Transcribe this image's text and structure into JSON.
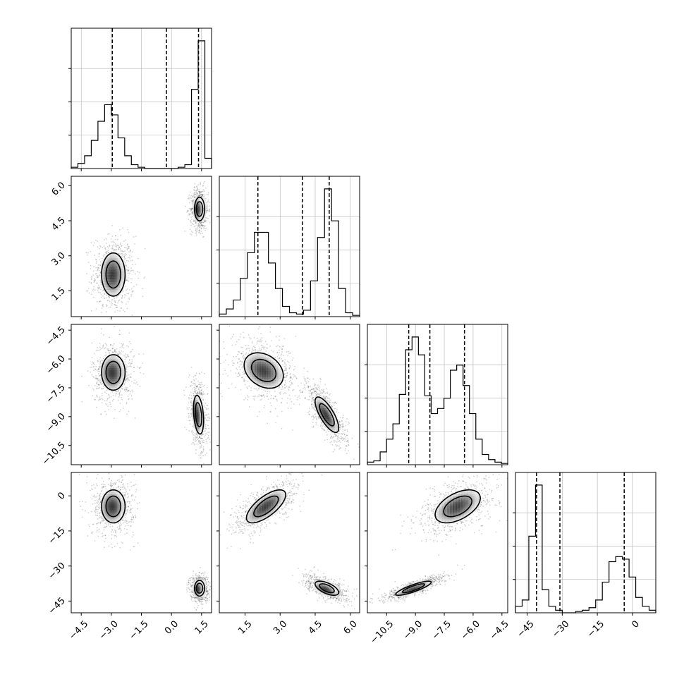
{
  "chart_data": {
    "type": "corner",
    "title": "",
    "parameters": [
      {
        "id": "p0",
        "range": [
          -5,
          2
        ],
        "ticks": [
          -4.5,
          -3.0,
          -1.5,
          0.0,
          1.5
        ],
        "tick_labels": [
          "−4.5",
          "−3.0",
          "−1.5",
          "0.0",
          "1.5"
        ],
        "quantiles": [
          -2.95,
          -0.25,
          1.35
        ]
      },
      {
        "id": "p1",
        "range": [
          0.4,
          6.4
        ],
        "ticks": [
          1.5,
          3.0,
          4.5,
          6.0
        ],
        "tick_labels": [
          "1.5",
          "3.0",
          "4.5",
          "6.0"
        ],
        "quantiles": [
          2.05,
          3.95,
          5.1
        ]
      },
      {
        "id": "p2",
        "range": [
          -11.5,
          -4.2
        ],
        "ticks": [
          -10.5,
          -9.0,
          -7.5,
          -6.0,
          -4.5
        ],
        "tick_labels": [
          "−10.5",
          "−9.0",
          "−7.5",
          "−6.0",
          "−4.5"
        ],
        "quantiles": [
          -9.35,
          -8.25,
          -6.45
        ]
      },
      {
        "id": "p3",
        "range": [
          -50,
          10
        ],
        "ticks": [
          -45,
          -30,
          -15,
          0
        ],
        "tick_labels": [
          "−45",
          "−30",
          "−15",
          "0"
        ],
        "quantiles": [
          -41,
          -31,
          -3.5
        ]
      }
    ],
    "histograms": [
      {
        "param": "p0",
        "counts": [
          0.01,
          0.04,
          0.1,
          0.22,
          0.37,
          0.5,
          0.42,
          0.24,
          0.1,
          0.03,
          0.01,
          0.0,
          0.0,
          0.0,
          0.0,
          0.0,
          0.01,
          0.03,
          0.62,
          1.0,
          0.08
        ]
      },
      {
        "param": "p1",
        "counts": [
          0.02,
          0.06,
          0.13,
          0.3,
          0.5,
          0.66,
          0.66,
          0.42,
          0.22,
          0.08,
          0.03,
          0.02,
          0.05,
          0.28,
          0.62,
          1.0,
          0.75,
          0.22,
          0.03,
          0.01
        ]
      },
      {
        "param": "p2",
        "counts": [
          0.02,
          0.03,
          0.1,
          0.2,
          0.32,
          0.55,
          0.9,
          1.0,
          0.86,
          0.54,
          0.4,
          0.44,
          0.52,
          0.74,
          0.78,
          0.62,
          0.4,
          0.2,
          0.08,
          0.04,
          0.02,
          0.01
        ]
      },
      {
        "param": "p3",
        "counts": [
          0.05,
          0.1,
          0.6,
          1.0,
          0.18,
          0.05,
          0.02,
          0.0,
          0.0,
          0.01,
          0.02,
          0.04,
          0.1,
          0.24,
          0.4,
          0.44,
          0.42,
          0.28,
          0.12,
          0.05,
          0.02
        ]
      }
    ],
    "pairs": [
      {
        "x": "p0",
        "y": "p1",
        "modes": [
          {
            "center": [
              -2.9,
              2.2
            ],
            "sigma": [
              0.35,
              0.55
            ],
            "corr": 0.0,
            "weight": 0.5
          },
          {
            "center": [
              1.4,
              5.0
            ],
            "sigma": [
              0.15,
              0.3
            ],
            "corr": 0.0,
            "weight": 0.5
          }
        ]
      },
      {
        "x": "p0",
        "y": "p2",
        "modes": [
          {
            "center": [
              -2.9,
              -6.7
            ],
            "sigma": [
              0.35,
              0.55
            ],
            "corr": 0.0,
            "weight": 0.5
          },
          {
            "center": [
              1.35,
              -8.9
            ],
            "sigma": [
              0.15,
              0.6
            ],
            "corr": -0.3,
            "weight": 0.5
          }
        ]
      },
      {
        "x": "p1",
        "y": "p2",
        "modes": [
          {
            "center": [
              2.3,
              -6.6
            ],
            "sigma": [
              0.5,
              0.55
            ],
            "corr": -0.3,
            "weight": 0.5
          },
          {
            "center": [
              5.0,
              -8.9
            ],
            "sigma": [
              0.3,
              0.55
            ],
            "corr": -0.75,
            "weight": 0.5
          }
        ]
      },
      {
        "x": "p0",
        "y": "p3",
        "modes": [
          {
            "center": [
              -2.9,
              -4.5
            ],
            "sigma": [
              0.35,
              4.2
            ],
            "corr": 0.0,
            "weight": 0.5
          },
          {
            "center": [
              1.4,
              -39.5
            ],
            "sigma": [
              0.15,
              2.0
            ],
            "corr": 0.0,
            "weight": 0.5
          }
        ]
      },
      {
        "x": "p1",
        "y": "p3",
        "modes": [
          {
            "center": [
              2.4,
              -4.5
            ],
            "sigma": [
              0.5,
              4.2
            ],
            "corr": 0.7,
            "weight": 0.5
          },
          {
            "center": [
              5.0,
              -39.5
            ],
            "sigma": [
              0.3,
              1.8
            ],
            "corr": -0.6,
            "weight": 0.5
          }
        ]
      },
      {
        "x": "p2",
        "y": "p3",
        "modes": [
          {
            "center": [
              -6.8,
              -4.5
            ],
            "sigma": [
              0.7,
              4.2
            ],
            "corr": 0.5,
            "weight": 0.5
          },
          {
            "center": [
              -9.1,
              -39.5
            ],
            "sigma": [
              0.55,
              1.8
            ],
            "corr": 0.85,
            "weight": 0.5
          }
        ]
      }
    ]
  }
}
